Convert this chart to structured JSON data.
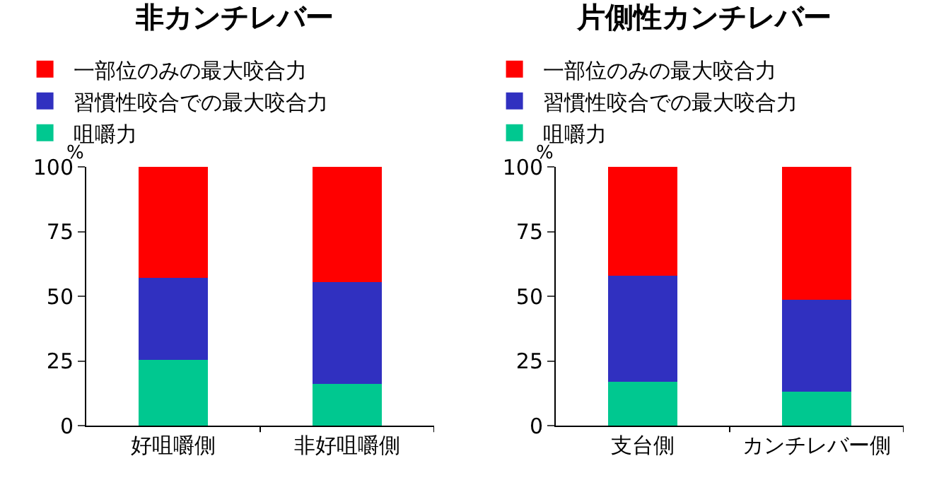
{
  "chart_data": [
    {
      "type": "bar",
      "title": "非カンチレバー",
      "ylabel": "%",
      "categories": [
        "好咀嚼側",
        "非好咀嚼側"
      ],
      "stacked": true,
      "legend": "top left",
      "grid": false,
      "ylim": [
        0,
        100
      ],
      "yticks": [
        0,
        25,
        50,
        75,
        100
      ],
      "series": [
        {
          "name": "咀嚼力",
          "color": "#00c890",
          "values": [
            25.5,
            16
          ]
        },
        {
          "name": "習慣性咬合での最大咬合力",
          "color": "#3030c0",
          "values": [
            31.5,
            39.5
          ]
        },
        {
          "name": "一部位のみの最大咬合力",
          "color": "#ff0000",
          "values": [
            43,
            44.5
          ]
        }
      ]
    },
    {
      "type": "bar",
      "title": "片側性カンチレバー",
      "ylabel": "%",
      "categories": [
        "支台側",
        "カンチレバー側"
      ],
      "stacked": true,
      "legend": "top left",
      "grid": false,
      "ylim": [
        0,
        100
      ],
      "yticks": [
        0,
        25,
        50,
        75,
        100
      ],
      "series": [
        {
          "name": "咀嚼力",
          "color": "#00c890",
          "values": [
            17,
            13
          ]
        },
        {
          "name": "習慣性咬合での最大咬合力",
          "color": "#3030c0",
          "values": [
            41,
            35.5
          ]
        },
        {
          "name": "一部位のみの最大咬合力",
          "color": "#ff0000",
          "values": [
            42,
            51.5
          ]
        }
      ]
    }
  ]
}
